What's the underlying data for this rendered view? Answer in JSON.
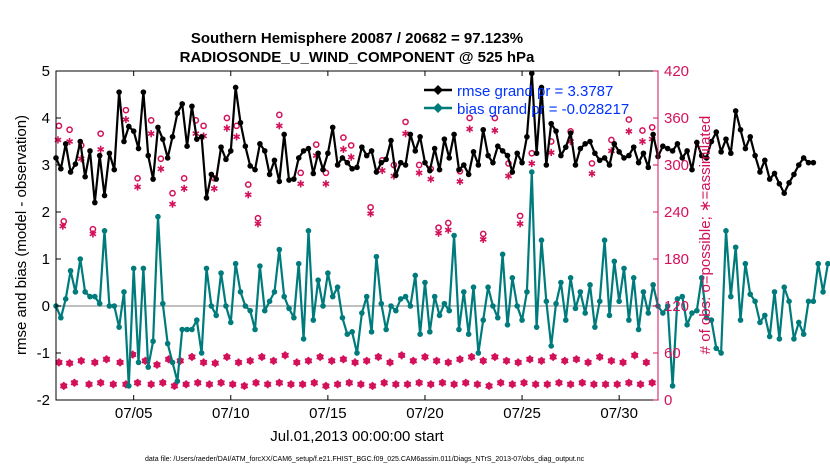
{
  "chart_data": {
    "type": "line",
    "title_line1": "Southern Hemisphere 20087 / 20682 = 97.123%",
    "title_line2": "RADIOSONDE_U_WIND_COMPONENT @ 525 hPa",
    "xlabel": "Jul.01,2013 00:00:00 start",
    "ylabel_left": "rmse and bias (model - observation)",
    "ylabel_right": "# of obs: o=possible; ∗=assimilated",
    "ylim_left": [
      -2,
      5
    ],
    "ylim_right": [
      0,
      420
    ],
    "x_range_days": [
      1.0,
      32.0
    ],
    "x_ticks": [
      {
        "day": 5,
        "label": "07/05"
      },
      {
        "day": 10,
        "label": "07/10"
      },
      {
        "day": 15,
        "label": "07/15"
      },
      {
        "day": 20,
        "label": "07/20"
      },
      {
        "day": 25,
        "label": "07/25"
      },
      {
        "day": 30,
        "label": "07/30"
      }
    ],
    "y_ticks_left": [
      {
        "value": -2,
        "label": "-2"
      },
      {
        "value": -1,
        "label": "-1"
      },
      {
        "value": 0,
        "label": "0"
      },
      {
        "value": 1,
        "label": "1"
      },
      {
        "value": 2,
        "label": "2"
      },
      {
        "value": 3,
        "label": "3"
      },
      {
        "value": 4,
        "label": "4"
      },
      {
        "value": 5,
        "label": "5"
      }
    ],
    "y_ticks_right": [
      {
        "value": 0,
        "label": "0"
      },
      {
        "value": 60,
        "label": "60"
      },
      {
        "value": 120,
        "label": "120"
      },
      {
        "value": 180,
        "label": "180"
      },
      {
        "value": 240,
        "label": "240"
      },
      {
        "value": 300,
        "label": "300"
      },
      {
        "value": 360,
        "label": "360"
      },
      {
        "value": 420,
        "label": "420"
      }
    ],
    "zero_line_value": 0,
    "x_start_day": 1.0,
    "x_step_days": 0.25,
    "rmse": [
      3.15,
      2.92,
      3.45,
      2.85,
      3.02,
      3.5,
      2.75,
      3.3,
      2.2,
      3.2,
      2.35,
      3.25,
      2.9,
      4.55,
      3.5,
      3.82,
      3.72,
      3.35,
      4.55,
      3.2,
      2.7,
      3.8,
      3.55,
      3.15,
      3.6,
      4.1,
      4.3,
      3.4,
      4.25,
      3.55,
      3.6,
      2.3,
      2.8,
      2.7,
      3.38,
      3.12,
      3.3,
      4.65,
      3.9,
      3.4,
      2.98,
      2.9,
      3.45,
      3.3,
      2.8,
      3.1,
      2.65,
      3.65,
      2.68,
      2.7,
      3.15,
      3.3,
      3.35,
      2.82,
      3.25,
      2.9,
      3.25,
      3.8,
      3.0,
      3.15,
      3.05,
      2.92,
      2.95,
      3.38,
      3.2,
      3.3,
      2.85,
      3.05,
      3.12,
      3.52,
      2.78,
      3.05,
      3.0,
      3.65,
      3.3,
      3.6,
      3.05,
      2.88,
      3.35,
      2.9,
      3.55,
      3.15,
      3.65,
      2.9,
      3.0,
      2.8,
      3.28,
      3.0,
      3.75,
      3.2,
      3.05,
      3.4,
      3.3,
      3.2,
      2.85,
      3.25,
      3.05,
      3.6,
      4.95,
      3.25,
      4.65,
      3.0,
      3.88,
      3.72,
      3.2,
      3.38,
      3.68,
      3.0,
      3.35,
      3.45,
      3.5,
      3.25,
      3.1,
      3.15,
      3.0,
      3.45,
      3.28,
      3.15,
      3.2,
      3.38,
      3.05,
      3.25,
      2.95,
      3.65,
      3.18,
      3.4,
      3.35,
      3.3,
      3.45,
      3.15,
      3.3,
      2.9,
      3.48,
      3.2,
      3.15,
      3.5,
      3.7,
      3.28,
      3.55,
      3.25,
      4.15,
      3.75,
      3.35,
      3.6,
      3.2,
      2.85,
      3.1,
      2.7,
      2.82,
      2.6,
      2.4,
      2.62,
      2.8,
      3.0,
      3.15,
      3.05,
      3.05
    ],
    "bias": [
      0.0,
      -0.25,
      0.15,
      0.75,
      0.3,
      1.0,
      0.3,
      0.2,
      0.2,
      0.05,
      1.6,
      0.0,
      0.0,
      -0.45,
      0.3,
      -1.7,
      0.8,
      -1.2,
      0.8,
      -1.3,
      -0.75,
      1.9,
      0.05,
      -0.8,
      -1.2,
      -1.6,
      -0.5,
      -0.5,
      -0.5,
      -0.3,
      -1.0,
      0.8,
      0.0,
      -0.2,
      0.7,
      0.0,
      -0.35,
      0.9,
      0.3,
      0.0,
      -0.1,
      -0.5,
      0.85,
      -0.1,
      0.1,
      0.3,
      1.2,
      0.2,
      -0.05,
      -0.25,
      0.9,
      -0.7,
      1.6,
      -0.3,
      0.55,
      0.0,
      0.7,
      0.2,
      0.4,
      -0.25,
      -0.6,
      -0.55,
      -1.0,
      -0.15,
      0.2,
      -0.55,
      1.05,
      0.05,
      -0.5,
      0.0,
      -0.1,
      0.15,
      0.2,
      0.0,
      0.65,
      -0.6,
      0.5,
      -0.55,
      0.2,
      -0.2,
      0.05,
      -0.1,
      1.5,
      -0.5,
      0.3,
      -0.6,
      0.4,
      -1.0,
      -0.3,
      0.4,
      0.0,
      -0.25,
      1.1,
      -0.4,
      0.6,
      0.0,
      -0.3,
      0.3,
      2.85,
      -0.45,
      1.4,
      0.1,
      -0.85,
      0.05,
      0.5,
      -0.3,
      0.6,
      -0.05,
      0.3,
      -0.15,
      0.45,
      -0.45,
      0.1,
      1.4,
      -0.2,
      0.95,
      0.1,
      0.8,
      -0.3,
      0.6,
      -0.5,
      0.3,
      -0.15,
      0.45,
      0.0,
      -0.15,
      0.0,
      -1.7,
      0.15,
      0.2,
      -0.4,
      -0.15,
      -0.1,
      0.6,
      -0.25,
      -0.3,
      -0.9,
      -1.0,
      1.6,
      0.2,
      1.25,
      -0.3,
      0.9,
      0.25,
      0.1,
      -0.35,
      -0.2,
      -0.65,
      0.3,
      -0.7,
      0.4,
      0.1,
      -0.7,
      -0.35,
      -0.6,
      0.1,
      0.1,
      0.9,
      0.3,
      0.9
    ],
    "possible_x": [
      1.15,
      1.4,
      1.7,
      2.3,
      2.9,
      3.3,
      4.6,
      5.2,
      5.9,
      6.4,
      7.0,
      7.6,
      8.2,
      8.6,
      9.15,
      9.8,
      10.3,
      10.9,
      11.4,
      12.5,
      13.6,
      14.4,
      14.9,
      15.8,
      16.2,
      17.2,
      17.8,
      18.4,
      19.0,
      19.7,
      20.3,
      20.7,
      21.2,
      21.8,
      22.3,
      23.0,
      23.6,
      24.3,
      24.9,
      25.5,
      26.5,
      27.5,
      28.6,
      29.6,
      30.5,
      31.2,
      31.7
    ],
    "possible_y": [
      350,
      228,
      345,
      325,
      218,
      340,
      370,
      283,
      357,
      308,
      264,
      283,
      357,
      350,
      283,
      360,
      350,
      275,
      232,
      364,
      290,
      326,
      290,
      335,
      325,
      246,
      306,
      300,
      355,
      300,
      295,
      220,
      226,
      292,
      360,
      212,
      360,
      302,
      235,
      315,
      330,
      343,
      302,
      332,
      358,
      344,
      348
    ],
    "assimilated_x": [
      1.1,
      1.35,
      1.7,
      2.3,
      2.9,
      3.3,
      4.6,
      5.2,
      5.9,
      6.4,
      7.0,
      7.6,
      8.2,
      8.6,
      9.15,
      9.8,
      10.3,
      10.9,
      11.4,
      12.5,
      13.6,
      14.4,
      14.9,
      15.8,
      16.2,
      17.2,
      17.8,
      18.4,
      19.0,
      19.7,
      20.3,
      20.7,
      21.2,
      21.8,
      22.3,
      23.0,
      23.6,
      24.3,
      24.9,
      25.5,
      26.5,
      27.5,
      28.6,
      29.6,
      30.5,
      31.2,
      31.7
    ],
    "assimilated_y": [
      332,
      222,
      330,
      308,
      212,
      320,
      358,
      272,
      340,
      295,
      250,
      270,
      340,
      337,
      270,
      347,
      336,
      262,
      225,
      350,
      276,
      312,
      276,
      320,
      310,
      238,
      293,
      286,
      340,
      290,
      282,
      213,
      217,
      279,
      346,
      205,
      344,
      286,
      225,
      302,
      316,
      330,
      289,
      318,
      343,
      330,
      333
    ],
    "obs_bottom_x": [
      1.15,
      1.4,
      1.7,
      1.95,
      2.3,
      2.7,
      3.0,
      3.3,
      3.6,
      3.95,
      4.3,
      4.6,
      4.95,
      5.2,
      5.6,
      5.9,
      6.2,
      6.5,
      6.8,
      7.1,
      7.4,
      7.7,
      8.0,
      8.3,
      8.6,
      8.9,
      9.2,
      9.5,
      9.8,
      10.1,
      10.4,
      10.7,
      11.0,
      11.3,
      11.6,
      11.9,
      12.2,
      12.5,
      12.8,
      13.1,
      13.4,
      13.7,
      14.0,
      14.3,
      14.6,
      14.9,
      15.2,
      15.5,
      15.8,
      16.1,
      16.4,
      16.7,
      17.0,
      17.3,
      17.6,
      17.9,
      18.2,
      18.5,
      18.8,
      19.1,
      19.4,
      19.7,
      20.0,
      20.3,
      20.6,
      20.9,
      21.2,
      21.5,
      21.8,
      22.1,
      22.4,
      22.7,
      23.0,
      23.3,
      23.6,
      23.9,
      24.2,
      24.5,
      24.8,
      25.1,
      25.4,
      25.7,
      26.0,
      26.3,
      26.6,
      26.9,
      27.2,
      27.5,
      27.8,
      28.1,
      28.4,
      28.7,
      29.0,
      29.3,
      29.6,
      29.9,
      30.2,
      30.5,
      30.8,
      31.1,
      31.4,
      31.7
    ],
    "obs_bottom_y": [
      48,
      18,
      47,
      22,
      50,
      20,
      48,
      22,
      52,
      20,
      48,
      20,
      58,
      22,
      50,
      20,
      45,
      22,
      52,
      18,
      50,
      20,
      55,
      22,
      48,
      20,
      47,
      22,
      55,
      20,
      48,
      18,
      50,
      22,
      55,
      20,
      50,
      22,
      57,
      20,
      48,
      20,
      50,
      22,
      55,
      18,
      50,
      20,
      52,
      22,
      48,
      20,
      50,
      18,
      55,
      22,
      48,
      20,
      57,
      20,
      50,
      22,
      55,
      20,
      50,
      22,
      48,
      20,
      52,
      22,
      55,
      20,
      50,
      18,
      55,
      22,
      50,
      20,
      48,
      22,
      52,
      20,
      50,
      20,
      55,
      22,
      50,
      20,
      52,
      22,
      48,
      20,
      55,
      20,
      50,
      20,
      48,
      22,
      57,
      20,
      48,
      22
    ],
    "legend": [
      {
        "label": "rmse grand pr = 3.3787",
        "color": "#000000"
      },
      {
        "label": "bias grand pr = -0.028217",
        "color": "#007b7b"
      }
    ],
    "footer": "data file: /Users/raeder/DAI/ATM_forcXX/CAM6_setup/f.e21.FHIST_BGC.f09_025.CAM6assim.011/Diags_NTrS_2013-07/obs_diag_output.nc",
    "colors": {
      "rmse": "#000000",
      "bias": "#007b7b",
      "obs": "#d3115a",
      "right_axis": "#d3115a",
      "zero_line": "#c0c0c0",
      "legend_text": "#0033ff"
    }
  }
}
